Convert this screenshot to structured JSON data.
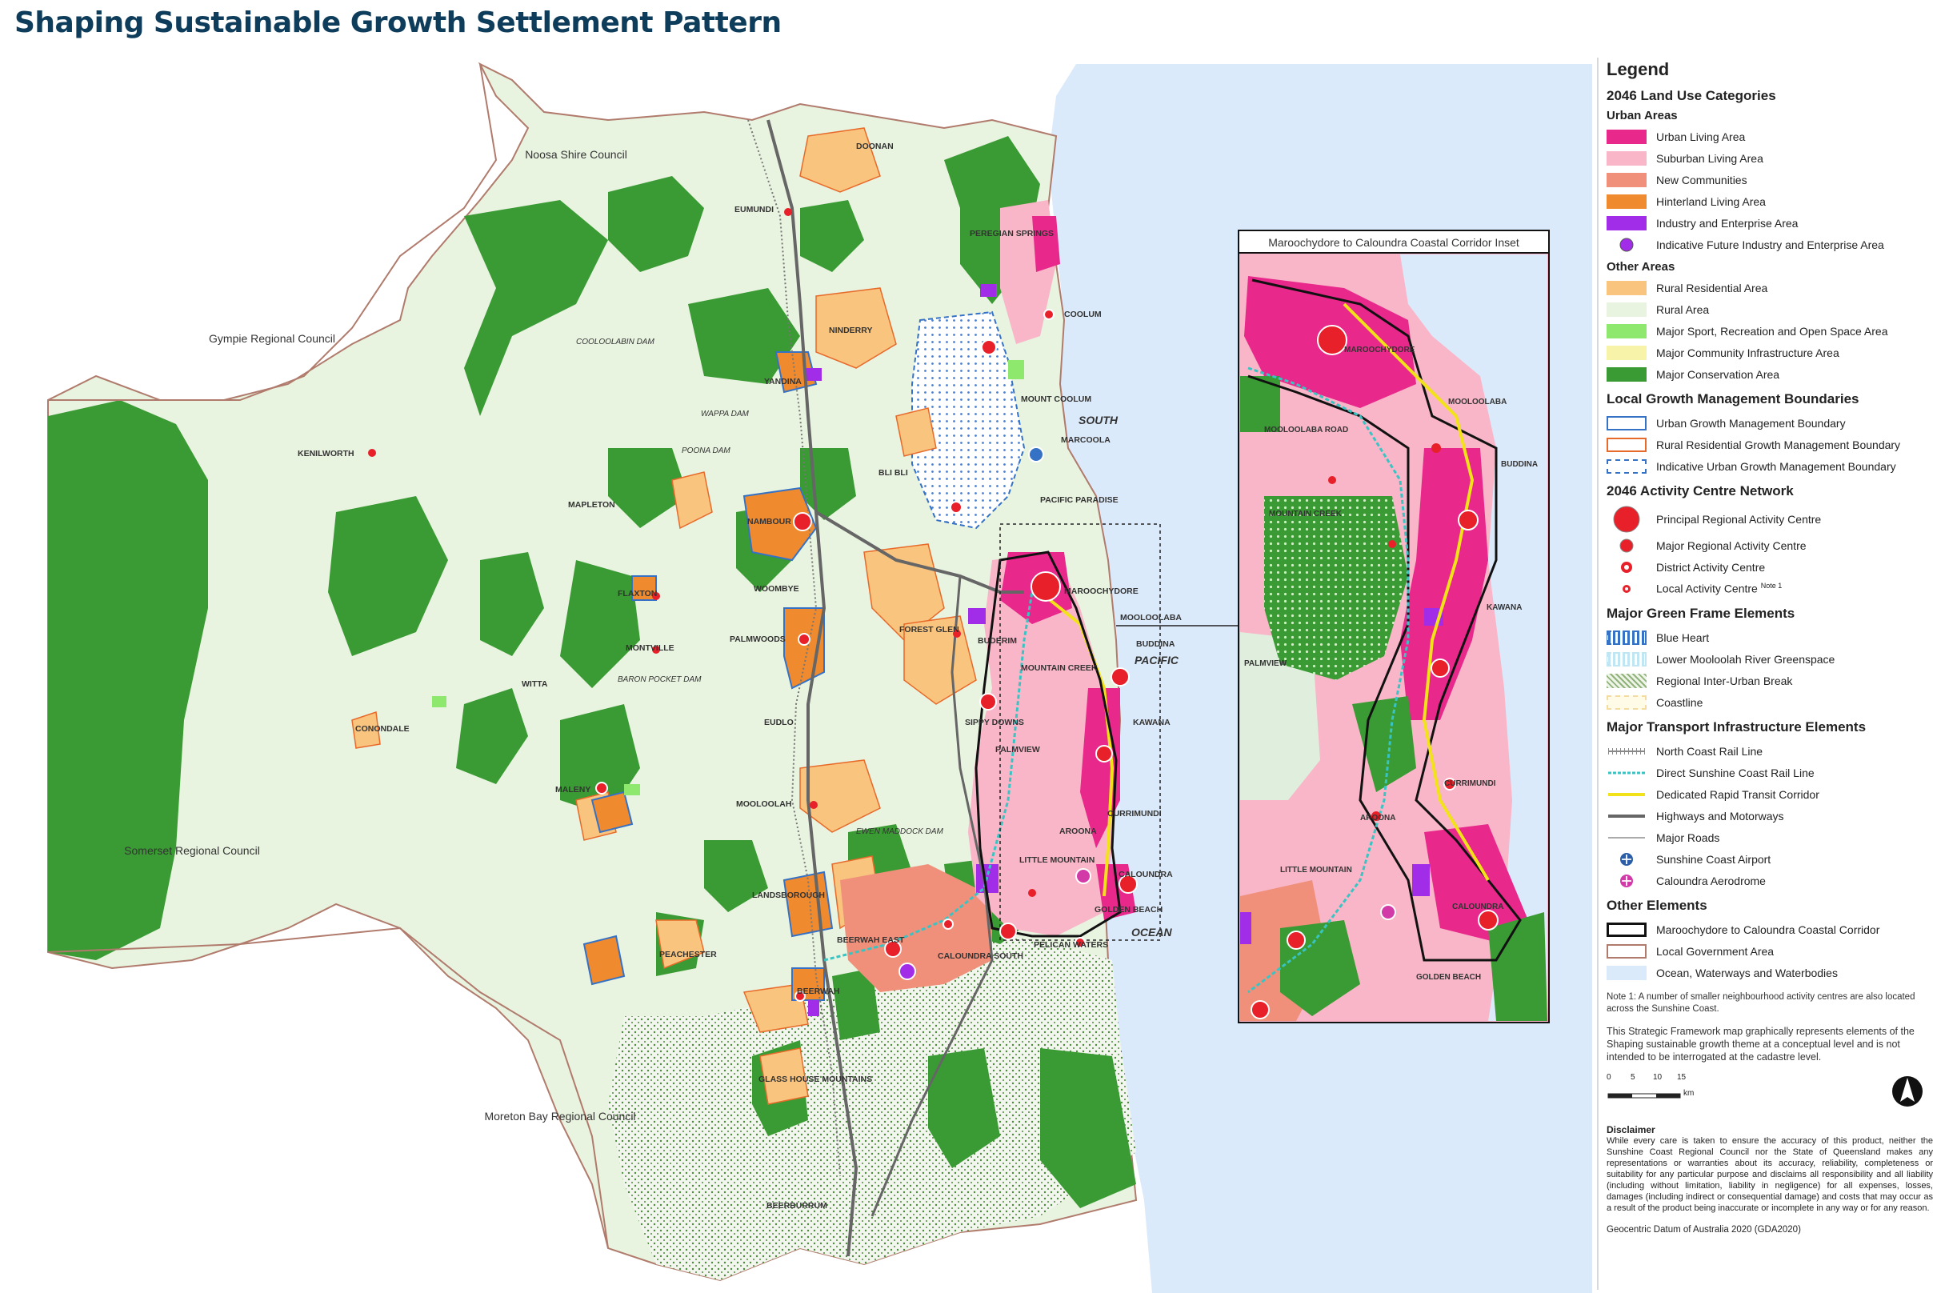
{
  "title": "Shaping Sustainable Growth Settlement Pattern",
  "colors": {
    "ocean": "#dbeafa",
    "rural": "#e8f3e0",
    "conservation": "#3a9a33",
    "urban_living": "#e8288a",
    "suburban": "#f8b6c8",
    "new_communities": "#f0907a",
    "hinterland": "#f08a2e",
    "industry": "#a22de8",
    "rural_residential": "#f9c47e",
    "sport": "#8ee86e",
    "community": "#f7f3a8",
    "boundary_blue": "#3572c6",
    "boundary_orange": "#e86a2a",
    "transit": "#f2e21a",
    "highway": "#666666",
    "lga": "#b07b6c",
    "activity_red": "#e8202a"
  },
  "map": {
    "councils": [
      "Noosa Shire Council",
      "Gympie Regional Council",
      "Somerset Regional Council",
      "Moreton Bay Regional Council"
    ],
    "place_labels": [
      "DOONAN",
      "EUMUNDI",
      "PEREGIAN SPRINGS",
      "COOLUM",
      "NINDERRY",
      "YANDINA",
      "MOUNT COOLUM",
      "MARCOOLA",
      "KENILWORTH",
      "MAPLETON",
      "BLI BLI",
      "PACIFIC PARADISE",
      "NAMBOUR",
      "WOOMBYE",
      "MAROOCHYDORE",
      "MOOLOOLABA",
      "FLAXTON",
      "PALMWOODS",
      "FOREST GLEN",
      "BUDERIM",
      "BUDDINA",
      "MONTVILLE",
      "WITTA",
      "MOUNTAIN CREEK",
      "CONONDALE",
      "EUDLO",
      "SIPPY DOWNS",
      "KAWANA",
      "PALMVIEW",
      "MALENY",
      "MOOLOOLAH",
      "AROONA",
      "CURRIMUNDI",
      "LITTLE MOUNTAIN",
      "CALOUNDRA",
      "LANDSBOROUGH",
      "GOLDEN BEACH",
      "BEERWAH EAST",
      "CALOUNDRA SOUTH",
      "PELICAN WATERS",
      "PEACHESTER",
      "BEERWAH",
      "GLASS HOUSE MOUNTAINS",
      "BEERBURRUM"
    ],
    "water_labels": [
      "COOLOOLABIN DAM",
      "WAPPA DAM",
      "POONA DAM",
      "BARON POCKET DAM",
      "EWEN MADDOCK DAM"
    ],
    "ocean_labels": [
      "SOUTH",
      "PACIFIC",
      "OCEAN"
    ],
    "inset": {
      "title": "Maroochydore to Caloundra Coastal Corridor Inset",
      "labels": [
        "MAROOCHYDORE",
        "MOOLOOLABA",
        "BUDDINA",
        "MOUNTAIN CREEK",
        "KAWANA",
        "PALMVIEW",
        "CURRIMUNDI",
        "AROONA",
        "LITTLE MOUNTAIN",
        "CALOUNDRA",
        "GOLDEN BEACH",
        "MOOLOOLABA ROAD"
      ]
    }
  },
  "legend": {
    "title": "Legend",
    "land_use_heading": "2046 Land Use Categories",
    "urban_heading": "Urban Areas",
    "urban_items": [
      "Urban Living Area",
      "Suburban Living Area",
      "New Communities",
      "Hinterland Living Area",
      "Industry and Enterprise Area",
      "Indicative Future Industry and Enterprise Area"
    ],
    "other_heading": "Other Areas",
    "other_items": [
      "Rural Residential Area",
      "Rural Area",
      "Major Sport, Recreation and Open Space Area",
      "Major Community Infrastructure Area",
      "Major Conservation Area"
    ],
    "boundaries_heading": "Local Growth Management Boundaries",
    "boundary_items": [
      "Urban Growth Management Boundary",
      "Rural Residential Growth Management Boundary",
      "Indicative Urban Growth Management Boundary"
    ],
    "activity_heading": "2046 Activity Centre Network",
    "activity_items": [
      "Principal Regional Activity Centre",
      "Major Regional Activity Centre",
      "District Activity Centre",
      "Local Activity Centre"
    ],
    "activity_note_sup": "Note 1",
    "green_heading": "Major Green Frame Elements",
    "green_items": [
      "Blue Heart",
      "Lower Mooloolah River Greenspace",
      "Regional Inter-Urban Break",
      "Coastline"
    ],
    "transport_heading": "Major Transport Infrastructure Elements",
    "transport_items": [
      "North Coast Rail Line",
      "Direct Sunshine Coast Rail Line",
      "Dedicated Rapid Transit Corridor",
      "Highways and Motorways",
      "Major Roads",
      "Sunshine Coast Airport",
      "Caloundra Aerodrome"
    ],
    "other_elements_heading": "Other Elements",
    "other_elements_items": [
      "Maroochydore to Caloundra Coastal Corridor",
      "Local Government Area",
      "Ocean, Waterways and Waterbodies"
    ],
    "note1": "Note 1: A number of smaller neighbourhood activity centres are also located across the Sunshine Coast.",
    "framework_note": "This Strategic Framework map graphically represents elements of the Shaping sustainable growth theme at a conceptual level and is not intended to be interrogated at the cadastre level.",
    "scale_ticks": [
      "0",
      "5",
      "10",
      "15"
    ],
    "scale_unit": "km",
    "disclaimer_heading": "Disclaimer",
    "disclaimer_text": "While every care is taken to ensure the accuracy of this product, neither the Sunshine Coast Regional Council nor the State of Queensland makes any representations or warranties about its accuracy, reliability, completeness or suitability for any particular purpose and disclaims all responsibility and all liability (including without limitation, liability in negligence) for all expenses, losses, damages (including indirect or consequential damage) and costs that may occur as a result of the product being inaccurate or incomplete in any way or for any reason.",
    "datum": "Geocentric Datum of Australia 2020 (GDA2020)"
  }
}
